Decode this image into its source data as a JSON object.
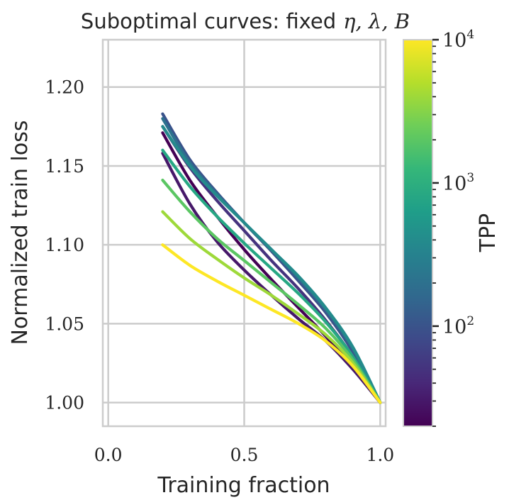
{
  "chart_data": {
    "type": "line",
    "title": "Suboptimal curves: fixed",
    "title_symbols": "η, λ, B",
    "xlabel": "Training fraction",
    "ylabel": "Normalized train loss",
    "xlim": [
      -0.02,
      1.02
    ],
    "ylim": [
      0.985,
      1.23
    ],
    "xticks": [
      0.0,
      0.5,
      1.0
    ],
    "xtick_labels": [
      "0.0",
      "0.5",
      "1.0"
    ],
    "yticks": [
      1.0,
      1.05,
      1.1,
      1.15,
      1.2
    ],
    "ytick_labels": [
      "1.00",
      "1.05",
      "1.10",
      "1.15",
      "1.20"
    ],
    "grid": true,
    "colorbar": {
      "label": "TPP",
      "scale": "log",
      "min": 20,
      "max": 10000,
      "ticks": [
        100,
        1000,
        10000
      ],
      "tick_base": "10",
      "tick_exponents": [
        "2",
        "3",
        "4"
      ],
      "colormap": [
        "#440154",
        "#482878",
        "#3e4989",
        "#31688e",
        "#26828e",
        "#1f9e89",
        "#35b779",
        "#6ece58",
        "#b5de2b",
        "#fde725"
      ]
    },
    "series": [
      {
        "tpp": 20,
        "x": [
          0.2,
          0.3,
          0.4,
          0.5,
          0.6,
          0.7,
          0.8,
          0.9,
          1.0
        ],
        "y": [
          1.171,
          1.141,
          1.118,
          1.097,
          1.078,
          1.06,
          1.042,
          1.022,
          1.0
        ]
      },
      {
        "tpp": 30,
        "x": [
          0.2,
          0.3,
          0.4,
          0.5,
          0.6,
          0.7,
          0.8,
          0.9,
          1.0
        ],
        "y": [
          1.158,
          1.126,
          1.102,
          1.084,
          1.068,
          1.053,
          1.039,
          1.021,
          1.0
        ]
      },
      {
        "tpp": 50,
        "x": [
          0.2,
          0.3,
          0.4,
          0.5,
          0.6,
          0.7,
          0.8,
          0.9,
          1.0
        ],
        "y": [
          1.175,
          1.149,
          1.128,
          1.109,
          1.09,
          1.072,
          1.052,
          1.029,
          1.0
        ]
      },
      {
        "tpp": 100,
        "x": [
          0.2,
          0.3,
          0.4,
          0.5,
          0.6,
          0.7,
          0.8,
          0.9,
          1.0
        ],
        "y": [
          1.183,
          1.154,
          1.133,
          1.114,
          1.096,
          1.077,
          1.057,
          1.032,
          1.0
        ]
      },
      {
        "tpp": 200,
        "x": [
          0.2,
          0.3,
          0.4,
          0.5,
          0.6,
          0.7,
          0.8,
          0.9,
          1.0
        ],
        "y": [
          1.18,
          1.152,
          1.132,
          1.114,
          1.097,
          1.079,
          1.059,
          1.034,
          1.0
        ]
      },
      {
        "tpp": 400,
        "x": [
          0.2,
          0.3,
          0.4,
          0.5,
          0.6,
          0.7,
          0.8,
          0.9,
          1.0
        ],
        "y": [
          1.175,
          1.15,
          1.131,
          1.114,
          1.097,
          1.08,
          1.06,
          1.035,
          1.0
        ]
      },
      {
        "tpp": 800,
        "x": [
          0.2,
          0.3,
          0.4,
          0.5,
          0.6,
          0.7,
          0.8,
          0.9,
          1.0
        ],
        "y": [
          1.16,
          1.137,
          1.118,
          1.101,
          1.085,
          1.069,
          1.051,
          1.029,
          1.0
        ]
      },
      {
        "tpp": 2000,
        "x": [
          0.2,
          0.3,
          0.4,
          0.5,
          0.6,
          0.7,
          0.8,
          0.9,
          1.0
        ],
        "y": [
          1.141,
          1.121,
          1.104,
          1.09,
          1.076,
          1.062,
          1.047,
          1.027,
          1.0
        ]
      },
      {
        "tpp": 4000,
        "x": [
          0.2,
          0.3,
          0.4,
          0.5,
          0.6,
          0.7,
          0.8,
          0.9,
          1.0
        ],
        "y": [
          1.121,
          1.104,
          1.091,
          1.079,
          1.068,
          1.056,
          1.043,
          1.025,
          1.0
        ]
      },
      {
        "tpp": 10000,
        "x": [
          0.2,
          0.3,
          0.4,
          0.5,
          0.6,
          0.7,
          0.8,
          0.9,
          1.0
        ],
        "y": [
          1.1,
          1.087,
          1.077,
          1.068,
          1.059,
          1.05,
          1.039,
          1.023,
          1.0
        ]
      }
    ]
  }
}
